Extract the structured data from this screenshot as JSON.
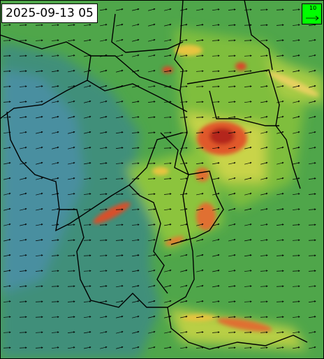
{
  "timestamp": "2025-09-13 05",
  "legend": {
    "label": "10"
  }
}
